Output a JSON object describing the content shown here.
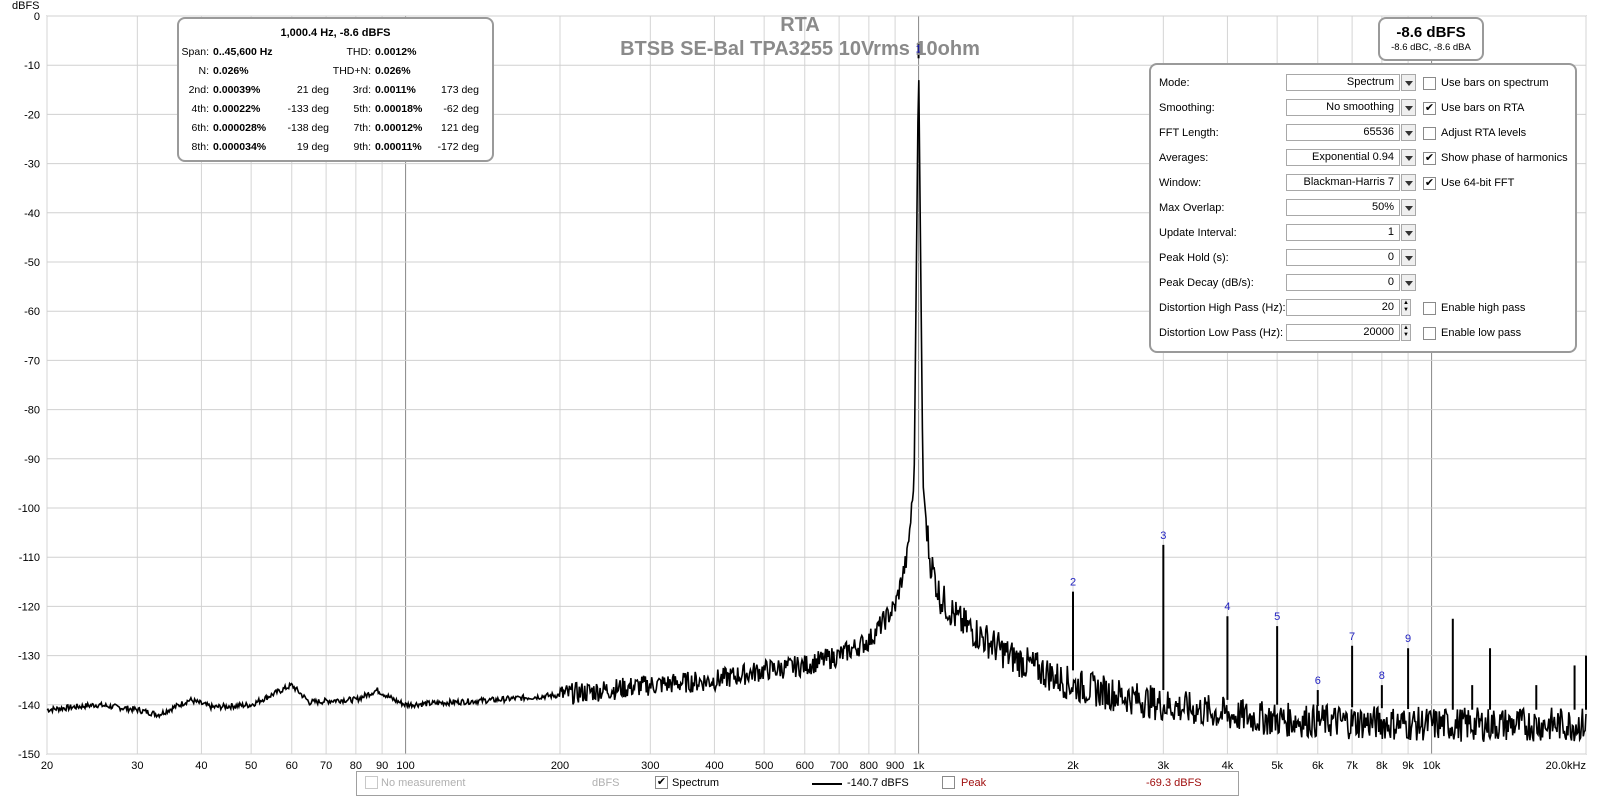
{
  "chart_data": {
    "type": "line",
    "title": "RTA",
    "subtitle": "BTSB SE-Bal TPA3255 10Vrms 10ohm",
    "ylabel": "dBFS",
    "x_scale": "log",
    "xlim": [
      20,
      20000
    ],
    "ylim": [
      -150,
      0
    ],
    "x_tick_labels": [
      "20",
      "30",
      "40",
      "50",
      "60",
      "70",
      "80",
      "90",
      "100",
      "200",
      "300",
      "400",
      "500",
      "600",
      "700",
      "800",
      "900",
      "1k",
      "2k",
      "3k",
      "4k",
      "5k",
      "6k",
      "7k",
      "8k",
      "9k",
      "10k",
      "20.0kHz"
    ],
    "x_tick_values": [
      20,
      30,
      40,
      50,
      60,
      70,
      80,
      90,
      100,
      200,
      300,
      400,
      500,
      600,
      700,
      800,
      900,
      1000,
      2000,
      3000,
      4000,
      5000,
      6000,
      7000,
      8000,
      9000,
      10000,
      20000
    ],
    "y_ticks": [
      0,
      -10,
      -20,
      -30,
      -40,
      -50,
      -60,
      -70,
      -80,
      -90,
      -100,
      -110,
      -120,
      -130,
      -140,
      -150
    ],
    "grid": true,
    "series": [
      {
        "name": "Spectrum",
        "color": "#000000",
        "noise_floor": [
          [
            20,
            -141
          ],
          [
            25,
            -140
          ],
          [
            30,
            -141
          ],
          [
            33,
            -142
          ],
          [
            38,
            -139
          ],
          [
            42,
            -140.5
          ],
          [
            50,
            -140
          ],
          [
            60,
            -136
          ],
          [
            65,
            -139.5
          ],
          [
            75,
            -139
          ],
          [
            80,
            -139
          ],
          [
            88,
            -137
          ],
          [
            95,
            -139
          ],
          [
            100,
            -140
          ],
          [
            150,
            -139
          ],
          [
            200,
            -138
          ],
          [
            300,
            -136
          ],
          [
            400,
            -135
          ],
          [
            500,
            -133
          ],
          [
            600,
            -132
          ],
          [
            700,
            -130
          ],
          [
            800,
            -127
          ],
          [
            900,
            -120
          ],
          [
            950,
            -110
          ],
          [
            980,
            -95
          ],
          [
            1000,
            -8.6
          ],
          [
            1020,
            -95
          ],
          [
            1050,
            -110
          ],
          [
            1100,
            -118
          ],
          [
            1200,
            -123
          ],
          [
            1500,
            -130
          ],
          [
            2000,
            -136
          ],
          [
            3000,
            -140
          ],
          [
            4000,
            -142
          ],
          [
            5000,
            -143
          ],
          [
            7000,
            -143.5
          ],
          [
            10000,
            -144
          ],
          [
            20000,
            -144
          ]
        ],
        "peaks": [
          {
            "label": "1",
            "x": 1000,
            "y": -8.6
          },
          {
            "label": "2",
            "x": 2000,
            "y": -117
          },
          {
            "label": "3",
            "x": 3000,
            "y": -107.5
          },
          {
            "label": "4",
            "x": 4000,
            "y": -122
          },
          {
            "label": "5",
            "x": 5000,
            "y": -124
          },
          {
            "label": "6",
            "x": 6000,
            "y": -137
          },
          {
            "label": "7",
            "x": 7000,
            "y": -128
          },
          {
            "label": "8",
            "x": 8000,
            "y": -136
          },
          {
            "label": "9",
            "x": 9000,
            "y": -128.5
          },
          {
            "label": "",
            "x": 11000,
            "y": -122.5
          },
          {
            "label": "",
            "x": 12000,
            "y": -136
          },
          {
            "label": "",
            "x": 13000,
            "y": -128.5
          },
          {
            "label": "",
            "x": 16000,
            "y": -136
          },
          {
            "label": "",
            "x": 19000,
            "y": -132
          },
          {
            "label": "",
            "x": 20000,
            "y": -130
          }
        ]
      }
    ]
  },
  "stats": {
    "header": "1,000.4 Hz, -8.6 dBFS",
    "span_label": "Span:",
    "span_value": "0..45,600 Hz",
    "thd_label": "THD:",
    "thd_value": "0.0012%",
    "n_label": "N:",
    "n_value": "0.026%",
    "thdn_label": "THD+N:",
    "thdn_value": "0.026%",
    "h2_label": "2nd:",
    "h2_value": "0.00039%",
    "h2_phase": "21 deg",
    "h3_label": "3rd:",
    "h3_value": "0.0011%",
    "h3_phase": "173 deg",
    "h4_label": "4th:",
    "h4_value": "0.00022%",
    "h4_phase": "-133 deg",
    "h5_label": "5th:",
    "h5_value": "0.00018%",
    "h5_phase": "-62 deg",
    "h6_label": "6th:",
    "h6_value": "0.000028%",
    "h6_phase": "-138 deg",
    "h7_label": "7th:",
    "h7_value": "0.00012%",
    "h7_phase": "121 deg",
    "h8_label": "8th:",
    "h8_value": "0.000034%",
    "h8_phase": "19 deg",
    "h9_label": "9th:",
    "h9_value": "0.00011%",
    "h9_phase": "-172 deg"
  },
  "level": {
    "main": "-8.6 dBFS",
    "sub": "-8.6 dBC, -8.6 dBA"
  },
  "controls": {
    "mode": {
      "label": "Mode:",
      "value": "Spectrum"
    },
    "smoothing": {
      "label": "Smoothing:",
      "value": "No  smoothing"
    },
    "fft_length": {
      "label": "FFT Length:",
      "value": "65536"
    },
    "averages": {
      "label": "Averages:",
      "value": "Exponential 0.94"
    },
    "window": {
      "label": "Window:",
      "value": "Blackman-Harris 7"
    },
    "max_overlap": {
      "label": "Max Overlap:",
      "value": "50%"
    },
    "update_interval": {
      "label": "Update Interval:",
      "value": "1"
    },
    "peak_hold": {
      "label": "Peak Hold (s):",
      "value": "0"
    },
    "peak_decay": {
      "label": "Peak Decay (dB/s):",
      "value": "0"
    },
    "dist_high_pass": {
      "label": "Distortion High Pass (Hz):",
      "value": "20"
    },
    "dist_low_pass": {
      "label": "Distortion Low Pass (Hz):",
      "value": "20000"
    },
    "checkboxes": {
      "bars_spectrum": {
        "label": "Use bars on spectrum",
        "checked": false
      },
      "bars_rta": {
        "label": "Use bars on RTA",
        "checked": true
      },
      "adjust_rta": {
        "label": "Adjust RTA levels",
        "checked": false
      },
      "show_phase": {
        "label": "Show phase of harmonics",
        "checked": true
      },
      "fft64": {
        "label": "Use 64-bit FFT",
        "checked": true
      },
      "high_pass": {
        "label": "Enable high pass",
        "checked": false
      },
      "low_pass": {
        "label": "Enable low pass",
        "checked": false
      }
    },
    "check_mark": "✔"
  },
  "legend": {
    "no_measurement": "No measurement",
    "no_measurement_unit": "dBFS",
    "spectrum_label": "Spectrum",
    "spectrum_value": "-140.7 dBFS",
    "peak_label": "Peak",
    "peak_value": "-69.3 dBFS",
    "peak_color": "#a01010",
    "dim_color": "#b0b0b0"
  }
}
